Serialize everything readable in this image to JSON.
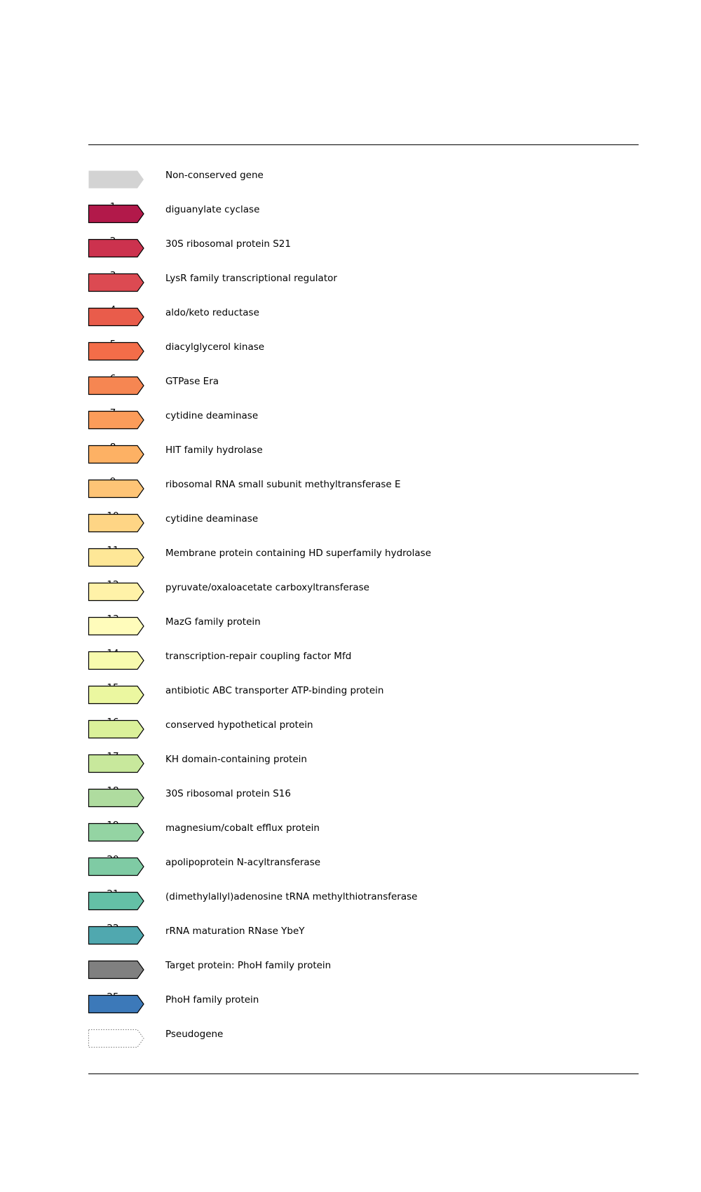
{
  "legend": {
    "items": [
      {
        "number": "",
        "label": "Non-conserved gene",
        "color": "#d3d3d3",
        "style": "non-conserved"
      },
      {
        "number": "1",
        "label": "diguanylate cyclase",
        "color": "#b2194a",
        "style": "solid"
      },
      {
        "number": "2",
        "label": "30S ribosomal protein S21",
        "color": "#cc324e",
        "style": "solid"
      },
      {
        "number": "3",
        "label": "LysR family transcriptional regulator",
        "color": "#dc4a52",
        "style": "solid"
      },
      {
        "number": "4",
        "label": "aldo/keto reductase",
        "color": "#e95c4b",
        "style": "solid"
      },
      {
        "number": "5",
        "label": "diacylglycerol kinase",
        "color": "#f36d49",
        "style": "solid"
      },
      {
        "number": "6",
        "label": "GTPase Era",
        "color": "#f68652",
        "style": "solid"
      },
      {
        "number": "7",
        "label": "cytidine deaminase",
        "color": "#fb9c5a",
        "style": "solid"
      },
      {
        "number": "8",
        "label": "HIT family hydrolase",
        "color": "#fdb164",
        "style": "solid"
      },
      {
        "number": "9",
        "label": "ribosomal RNA small subunit methyltransferase E",
        "color": "#fec476",
        "style": "solid"
      },
      {
        "number": "10",
        "label": "cytidine deaminase",
        "color": "#fed585",
        "style": "solid"
      },
      {
        "number": "11",
        "label": "Membrane protein containing HD superfamily hydrolase",
        "color": "#fee797",
        "style": "solid"
      },
      {
        "number": "12",
        "label": "pyruvate/oxaloacetate carboxyltransferase",
        "color": "#fff2a8",
        "style": "solid"
      },
      {
        "number": "13",
        "label": "MazG family protein",
        "color": "#fffcbb",
        "style": "solid"
      },
      {
        "number": "14",
        "label": "transcription-repair coupling factor Mfd",
        "color": "#f8fbae",
        "style": "solid"
      },
      {
        "number": "15",
        "label": "antibiotic ABC transporter ATP-binding protein",
        "color": "#ebf7a0",
        "style": "solid"
      },
      {
        "number": "16",
        "label": "conserved hypothetical protein",
        "color": "#dbf19a",
        "style": "solid"
      },
      {
        "number": "17",
        "label": "KH domain-containing protein",
        "color": "#c8e89c",
        "style": "solid"
      },
      {
        "number": "18",
        "label": "30S ribosomal protein S16",
        "color": "#afdc9f",
        "style": "solid"
      },
      {
        "number": "19",
        "label": "magnesium/cobalt efflux protein",
        "color": "#94d4a3",
        "style": "solid"
      },
      {
        "number": "20",
        "label": "apolipoprotein N-acyltransferase",
        "color": "#7fcba4",
        "style": "solid"
      },
      {
        "number": "21",
        "label": "(dimethylallyl)adenosine tRNA methylthiotransferase",
        "color": "#64c0a6",
        "style": "solid"
      },
      {
        "number": "22",
        "label": "rRNA maturation RNase YbeY",
        "color": "#50a8af",
        "style": "solid"
      },
      {
        "number": "",
        "label": "Target protein: PhoH family protein",
        "color": "#808080",
        "style": "solid"
      },
      {
        "number": "25",
        "label": "PhoH family protein",
        "color": "#3c79b9",
        "style": "solid"
      },
      {
        "number": "",
        "label": "Pseudogene",
        "color": "#ffffff",
        "style": "pseudogene"
      }
    ]
  }
}
